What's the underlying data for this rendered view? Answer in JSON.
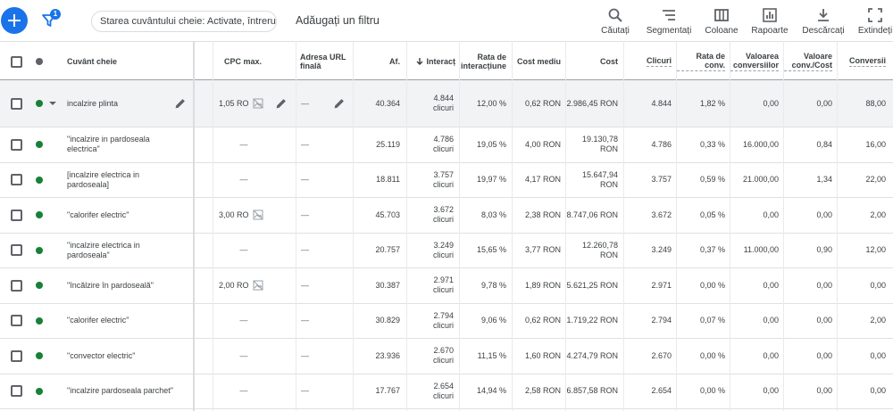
{
  "toolbar": {
    "filter_count": "1",
    "status_chip": "Starea cuvântului cheie: Activate, întrerupte",
    "add_filter": "Adăugați un filtru",
    "tools": [
      {
        "label": "Căutați",
        "icon": "search-icon"
      },
      {
        "label": "Segmentați",
        "icon": "segment-icon"
      },
      {
        "label": "Coloane",
        "icon": "columns-icon"
      },
      {
        "label": "Rapoarte",
        "icon": "reports-icon"
      },
      {
        "label": "Descărcați",
        "icon": "download-icon"
      },
      {
        "label": "Extindeți",
        "icon": "expand-icon"
      }
    ]
  },
  "headers": {
    "keyword": "Cuvânt cheie",
    "cpc": "CPC max.",
    "url": "Adresa URL finală",
    "impr": "Af.",
    "interactions": "Interacț",
    "int_rate": "Rata de interacțiune",
    "avg_cost": "Cost mediu",
    "cost": "Cost",
    "clicks": "Clicuri",
    "conv_rate": "Rata de conv.",
    "conv_value": "Valoarea conversiilor",
    "value_per_cost": "Valoare conv./Cost",
    "conversions": "Conversii"
  },
  "interactions_unit": "clicuri",
  "rows": [
    {
      "keyword": "incalzire plinta",
      "cpc": "1,05 RO",
      "url": "—",
      "impr": "40.364",
      "interactions": "4.844",
      "int_rate": "12,00 %",
      "avg_cost": "0,62 RON",
      "cost": "2.986,45 RON",
      "clicks": "4.844",
      "conv_rate": "1,82 %",
      "conv_value": "0,00",
      "value_per_cost": "0,00",
      "conversions": "88,00"
    },
    {
      "keyword": "\"incalzire in pardoseala electrica\"",
      "cpc": "—",
      "url": "—",
      "impr": "25.119",
      "interactions": "4.786",
      "int_rate": "19,05 %",
      "avg_cost": "4,00 RON",
      "cost": "19.130,78 RON",
      "clicks": "4.786",
      "conv_rate": "0,33 %",
      "conv_value": "16.000,00",
      "value_per_cost": "0,84",
      "conversions": "16,00"
    },
    {
      "keyword": "[incalzire electrica in pardoseala]",
      "cpc": "—",
      "url": "—",
      "impr": "18.811",
      "interactions": "3.757",
      "int_rate": "19,97 %",
      "avg_cost": "4,17 RON",
      "cost": "15.647,94 RON",
      "clicks": "3.757",
      "conv_rate": "0,59 %",
      "conv_value": "21.000,00",
      "value_per_cost": "1,34",
      "conversions": "22,00"
    },
    {
      "keyword": "\"calorifer electric\"",
      "cpc": "3,00 RO",
      "url": "—",
      "impr": "45.703",
      "interactions": "3.672",
      "int_rate": "8,03 %",
      "avg_cost": "2,38 RON",
      "cost": "8.747,06 RON",
      "clicks": "3.672",
      "conv_rate": "0,05 %",
      "conv_value": "0,00",
      "value_per_cost": "0,00",
      "conversions": "2,00"
    },
    {
      "keyword": "\"incalzire electrica in pardoseala\"",
      "cpc": "—",
      "url": "—",
      "impr": "20.757",
      "interactions": "3.249",
      "int_rate": "15,65 %",
      "avg_cost": "3,77 RON",
      "cost": "12.260,78 RON",
      "clicks": "3.249",
      "conv_rate": "0,37 %",
      "conv_value": "11.000,00",
      "value_per_cost": "0,90",
      "conversions": "12,00"
    },
    {
      "keyword": "\"încălzire în pardoseală\"",
      "cpc": "2,00 RO",
      "url": "—",
      "impr": "30.387",
      "interactions": "2.971",
      "int_rate": "9,78 %",
      "avg_cost": "1,89 RON",
      "cost": "5.621,25 RON",
      "clicks": "2.971",
      "conv_rate": "0,00 %",
      "conv_value": "0,00",
      "value_per_cost": "0,00",
      "conversions": "0,00"
    },
    {
      "keyword": "\"calorifer electric\"",
      "cpc": "—",
      "url": "—",
      "impr": "30.829",
      "interactions": "2.794",
      "int_rate": "9,06 %",
      "avg_cost": "0,62 RON",
      "cost": "1.719,22 RON",
      "clicks": "2.794",
      "conv_rate": "0,07 %",
      "conv_value": "0,00",
      "value_per_cost": "0,00",
      "conversions": "2,00"
    },
    {
      "keyword": "\"convector electric\"",
      "cpc": "—",
      "url": "—",
      "impr": "23.936",
      "interactions": "2.670",
      "int_rate": "11,15 %",
      "avg_cost": "1,60 RON",
      "cost": "4.274,79 RON",
      "clicks": "2.670",
      "conv_rate": "0,00 %",
      "conv_value": "0,00",
      "value_per_cost": "0,00",
      "conversions": "0,00"
    },
    {
      "keyword": "\"incalzire pardoseala parchet\"",
      "cpc": "—",
      "url": "—",
      "impr": "17.767",
      "interactions": "2.654",
      "int_rate": "14,94 %",
      "avg_cost": "2,58 RON",
      "cost": "6.857,58 RON",
      "clicks": "2.654",
      "conv_rate": "0,00 %",
      "conv_value": "0,00",
      "value_per_cost": "0,00",
      "conversions": "0,00"
    }
  ],
  "colors": {
    "accent": "#1a73e8",
    "status_enabled": "#188038",
    "row_highlight": "#f1f3f4"
  }
}
